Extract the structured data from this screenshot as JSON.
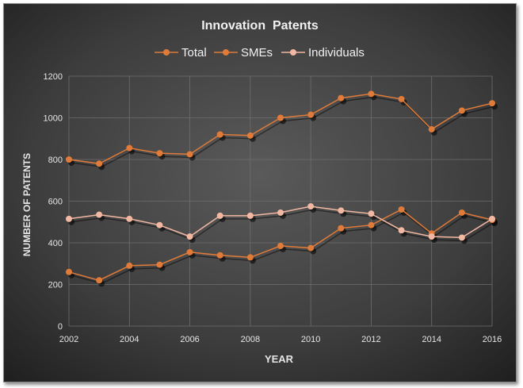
{
  "chart_data": {
    "type": "line",
    "title": "Innovation  Patents",
    "xlabel": "YEAR",
    "ylabel": "NUMBER OF PATENTS",
    "x": [
      2002,
      2003,
      2004,
      2005,
      2006,
      2007,
      2008,
      2009,
      2010,
      2011,
      2012,
      2013,
      2014,
      2015,
      2016
    ],
    "xlim": [
      2002,
      2016
    ],
    "ylim": [
      0,
      1200
    ],
    "x_ticks": [
      2002,
      2004,
      2006,
      2008,
      2010,
      2012,
      2014,
      2016
    ],
    "y_ticks": [
      0,
      200,
      400,
      600,
      800,
      1000,
      1200
    ],
    "grid": true,
    "legend_position": "top",
    "series": [
      {
        "name": "Total",
        "color": "#e07b39",
        "values": [
          800,
          780,
          855,
          830,
          825,
          920,
          915,
          1000,
          1015,
          1095,
          1115,
          1090,
          945,
          1035,
          1070
        ]
      },
      {
        "name": "SMEs",
        "color": "#e07b39",
        "values": [
          260,
          220,
          290,
          295,
          355,
          340,
          330,
          385,
          375,
          470,
          485,
          560,
          445,
          545,
          510
        ]
      },
      {
        "name": "Individuals",
        "color": "#f2b8a2",
        "values": [
          515,
          535,
          515,
          485,
          430,
          530,
          530,
          545,
          575,
          555,
          540,
          460,
          430,
          425,
          515
        ]
      }
    ]
  }
}
